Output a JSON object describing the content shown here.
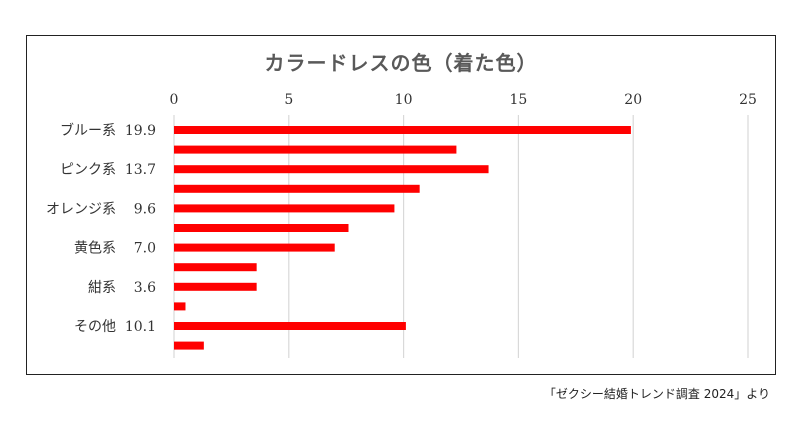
{
  "chart_data": {
    "type": "bar",
    "orientation": "horizontal",
    "title": "カラードレスの色（着た色）",
    "xlim": [
      0,
      25
    ],
    "x_ticks": [
      "0",
      "5",
      "10",
      "15",
      "20",
      "25"
    ],
    "grid": "vertical",
    "legend": "none",
    "bar_color": "#ff0000",
    "categories": [
      "ブルー系",
      "",
      "ピンク系",
      "",
      "オレンジ系",
      "",
      "黄色系",
      "",
      "紺系",
      "",
      "その他",
      ""
    ],
    "value_labels": [
      "19.9",
      "",
      "13.7",
      "",
      "9.6",
      "",
      "7.0",
      "",
      "3.6",
      "",
      "10.1",
      ""
    ],
    "values": [
      19.9,
      12.3,
      13.7,
      10.7,
      9.6,
      7.6,
      7.0,
      3.6,
      3.6,
      0.5,
      10.1,
      1.3
    ]
  },
  "source_note": "「ゼクシー結婚トレンド調査 2024」より"
}
